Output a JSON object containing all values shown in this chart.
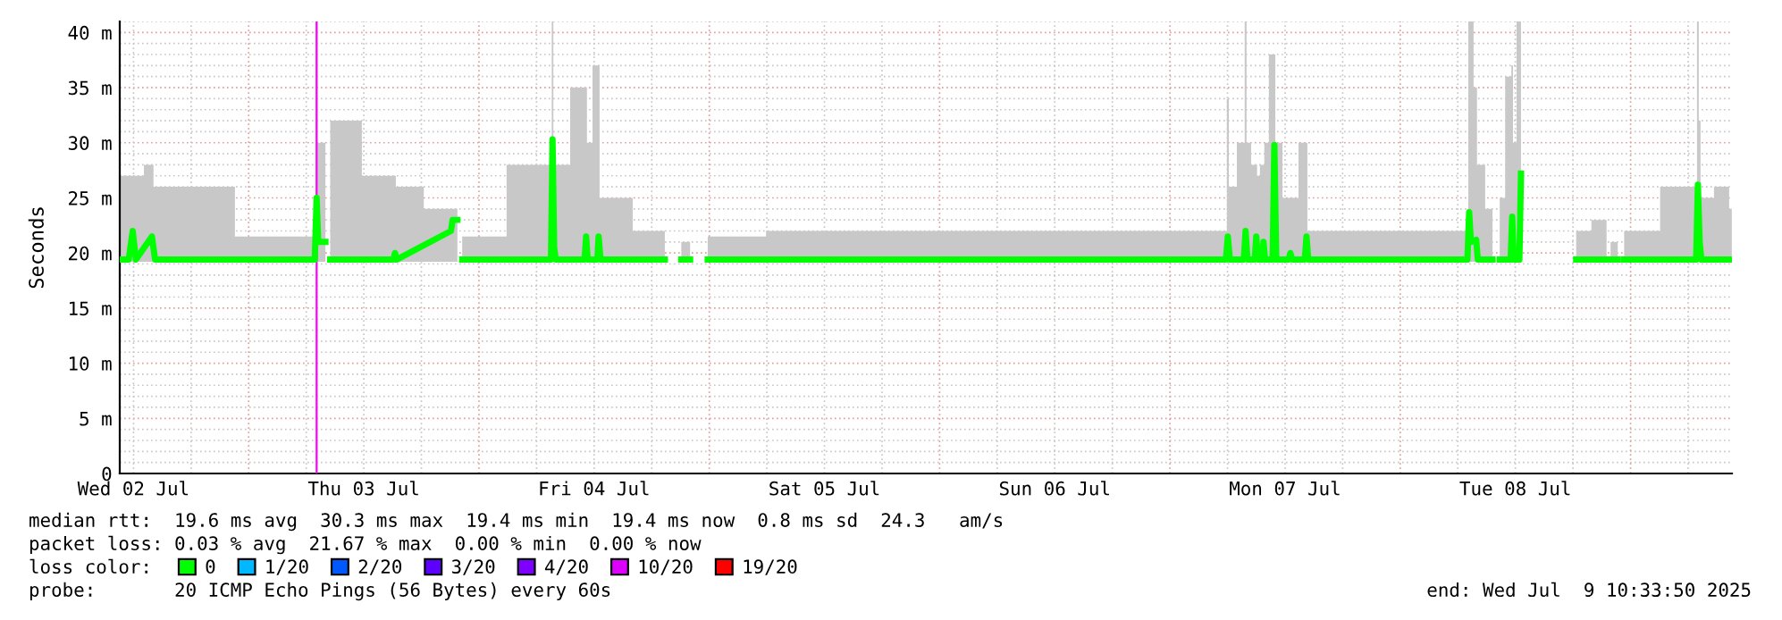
{
  "chart_data": {
    "type": "line",
    "ylabel": "Seconds",
    "legend_title": "loss color:",
    "legend": "bottom",
    "grid": true,
    "xlim": [
      "2025-07-02T10:34",
      "2025-07-09T10:34"
    ],
    "xticks": [
      {
        "value": "2025-07-02T12:00",
        "label": "Wed 02 Jul"
      },
      {
        "value": "2025-07-03T12:00",
        "label": "Thu 03 Jul"
      },
      {
        "value": "2025-07-04T12:00",
        "label": "Fri 04 Jul"
      },
      {
        "value": "2025-07-05T12:00",
        "label": "Sat 05 Jul"
      },
      {
        "value": "2025-07-06T12:00",
        "label": "Sun 06 Jul"
      },
      {
        "value": "2025-07-07T12:00",
        "label": "Mon 07 Jul"
      },
      {
        "value": "2025-07-08T12:00",
        "label": "Tue 08 Jul"
      }
    ],
    "ylim": [
      0,
      41
    ],
    "yticks": [
      {
        "value": 0,
        "label": "0"
      },
      {
        "value": 5,
        "label": "5 m"
      },
      {
        "value": 10,
        "label": "10 m"
      },
      {
        "value": 15,
        "label": "15 m"
      },
      {
        "value": 20,
        "label": "20 m"
      },
      {
        "value": 25,
        "label": "25 m"
      },
      {
        "value": 30,
        "label": "30 m"
      },
      {
        "value": 35,
        "label": "35 m"
      },
      {
        "value": 40,
        "label": "40 m"
      }
    ],
    "ref_lines": [
      {
        "axis": "x",
        "value": "2025-07-03T07:05",
        "color": "#ff00ff"
      }
    ],
    "x": [
      "2025-07-02T10:35",
      "2025-07-02T11:30",
      "2025-07-02T11:55",
      "2025-07-02T12:15",
      "2025-07-02T13:55",
      "2025-07-02T14:15",
      "2025-07-03T06:53",
      "2025-07-03T07:05",
      "2025-07-03T07:15",
      "2025-07-03T08:00",
      "2025-07-03T08:10",
      "2025-07-03T08:30",
      "2025-07-03T15:05",
      "2025-07-03T15:15",
      "2025-07-03T15:25",
      "2025-07-03T21:05",
      "2025-07-03T21:15",
      "2025-07-03T21:45",
      "2025-07-03T21:55",
      "2025-07-03T22:15",
      "2025-07-04T07:30",
      "2025-07-04T07:40",
      "2025-07-04T07:50",
      "2025-07-04T08:00",
      "2025-07-04T11:00",
      "2025-07-04T11:10",
      "2025-07-04T11:20",
      "2025-07-04T12:20",
      "2025-07-04T12:28",
      "2025-07-04T12:40",
      "2025-07-04T19:22",
      "2025-07-04T19:35",
      "2025-07-04T21:05",
      "2025-07-04T22:00",
      "2025-07-04T22:10",
      "2025-07-04T23:50",
      "2025-07-05T12:00",
      "2025-07-06T12:00",
      "2025-07-07T05:50",
      "2025-07-07T06:02",
      "2025-07-07T06:15",
      "2025-07-07T07:42",
      "2025-07-07T07:53",
      "2025-07-07T08:05",
      "2025-07-07T08:50",
      "2025-07-07T09:00",
      "2025-07-07T09:10",
      "2025-07-07T09:35",
      "2025-07-07T09:45",
      "2025-07-07T09:55",
      "2025-07-07T10:42",
      "2025-07-07T10:53",
      "2025-07-07T11:05",
      "2025-07-07T12:22",
      "2025-07-07T12:33",
      "2025-07-07T12:45",
      "2025-07-07T14:03",
      "2025-07-07T14:14",
      "2025-07-07T14:25",
      "2025-07-08T07:00",
      "2025-07-08T07:11",
      "2025-07-08T07:22",
      "2025-07-08T07:55",
      "2025-07-08T08:05",
      "2025-07-08T09:37",
      "2025-07-08T09:48",
      "2025-07-08T10:22",
      "2025-07-08T11:30",
      "2025-07-08T11:40",
      "2025-07-08T11:50",
      "2025-07-08T12:25",
      "2025-07-08T12:35",
      "2025-07-08T12:45",
      "2025-07-08T18:20",
      "2025-07-08T21:30",
      "2025-07-08T21:40",
      "2025-07-08T21:55",
      "2025-07-08T22:40",
      "2025-07-08T22:50",
      "2025-07-08T23:20",
      "2025-07-09T06:50",
      "2025-07-09T07:01",
      "2025-07-09T07:12",
      "2025-07-09T07:23",
      "2025-07-09T10:00",
      "2025-07-09T10:33"
    ],
    "series": [
      {
        "name": "0",
        "color": "#00ff00",
        "values": [
          19.4,
          19.4,
          22,
          19.4,
          21.5,
          19.4,
          19.4,
          25,
          21,
          21,
          null,
          19.4,
          19.4,
          20,
          19.4,
          22,
          23,
          23,
          null,
          19.4,
          19.4,
          30.3,
          20.5,
          19.4,
          19.4,
          21.5,
          19.4,
          19.4,
          21.5,
          19.4,
          19.4,
          null,
          19.4,
          19.4,
          null,
          19.4,
          19.4,
          19.4,
          19.4,
          21.5,
          19.4,
          19.4,
          22,
          19.4,
          19.4,
          21.5,
          19.4,
          19.4,
          21,
          19.4,
          19.4,
          29.8,
          19.4,
          19.4,
          20,
          19.4,
          19.4,
          21.5,
          19.4,
          19.4,
          23.7,
          21,
          21.2,
          19.4,
          19.4,
          null,
          19.4,
          19.4,
          23.3,
          19.4,
          19.4,
          27.2,
          null,
          19.4,
          19.4,
          null,
          19.4,
          19.4,
          null,
          19.4,
          19.4,
          26.2,
          21,
          19.4,
          19.4,
          19.4
        ],
        "lower": [
          19.2,
          19.2,
          19.2,
          19.2,
          19.2,
          19.2,
          19.2,
          19.2,
          19.2,
          19.2,
          null,
          19.2,
          19.2,
          19.2,
          19.2,
          19.2,
          19.2,
          19.2,
          null,
          19.2,
          19.2,
          19.2,
          19.2,
          19.2,
          19.2,
          19.2,
          19.2,
          19.2,
          19.2,
          19.2,
          19.2,
          null,
          19.2,
          19.2,
          null,
          19.2,
          19.2,
          19.2,
          19.2,
          19.2,
          19.2,
          19.2,
          19.2,
          19.2,
          19.2,
          19.2,
          19.2,
          19.2,
          19.2,
          19.2,
          19.2,
          19.2,
          19.2,
          19.2,
          19.2,
          19.2,
          19.2,
          19.2,
          19.2,
          19.2,
          19.2,
          19.2,
          19.2,
          19.2,
          19.2,
          null,
          19.2,
          19.2,
          19.2,
          19.2,
          19.2,
          19.2,
          null,
          19.2,
          19.2,
          null,
          19.2,
          19.2,
          null,
          19.2,
          19.2,
          19.2,
          19.2,
          19.2,
          19.2,
          19.2
        ],
        "upper": [
          27,
          27,
          27,
          27,
          28,
          26,
          21.5,
          41,
          30,
          30,
          null,
          32,
          27,
          27,
          26,
          24,
          24,
          24,
          null,
          21.5,
          28,
          41,
          30,
          28,
          35,
          35,
          30,
          37,
          37,
          25,
          22,
          null,
          21,
          21,
          null,
          21.5,
          22,
          22,
          22,
          34,
          26,
          30,
          41,
          30,
          28,
          28,
          27,
          28,
          28,
          30,
          38,
          38,
          30,
          25,
          25,
          25,
          30,
          30,
          22,
          22,
          41,
          41,
          35,
          28,
          24,
          null,
          25,
          36,
          37,
          30,
          41,
          41,
          null,
          22,
          23,
          null,
          21,
          21,
          null,
          22,
          26,
          41,
          32,
          25,
          26,
          24
        ]
      },
      {
        "name": "1/20",
        "color": "#00b8ff",
        "values": [
          null,
          null,
          null,
          null,
          null,
          null,
          null,
          null,
          null,
          null,
          null,
          null,
          null,
          null,
          null,
          null,
          null,
          null,
          null,
          null,
          null,
          null,
          null,
          null,
          null,
          null,
          null,
          null,
          null,
          null,
          null,
          null,
          null,
          null,
          null,
          null,
          null,
          null,
          null,
          null,
          null,
          null,
          null,
          null,
          null,
          null,
          null,
          null,
          null,
          null,
          null,
          null,
          null,
          null,
          null,
          null,
          null,
          null,
          null,
          null,
          null,
          null,
          null,
          null,
          null,
          null,
          null,
          null,
          null,
          null,
          null,
          null,
          null,
          null,
          null,
          null,
          null,
          null,
          null,
          null,
          null,
          null,
          null,
          null,
          null,
          null
        ]
      },
      {
        "name": "2/20",
        "color": "#0059ff",
        "values": [
          null,
          null,
          null,
          null,
          null,
          null,
          null,
          null,
          null,
          null,
          null,
          null,
          null,
          null,
          null,
          null,
          null,
          null,
          null,
          null,
          null,
          null,
          null,
          null,
          null,
          null,
          null,
          null,
          null,
          null,
          null,
          null,
          null,
          null,
          null,
          null,
          null,
          null,
          null,
          null,
          null,
          null,
          null,
          null,
          null,
          null,
          null,
          null,
          null,
          null,
          null,
          null,
          null,
          null,
          null,
          null,
          null,
          null,
          null,
          null,
          null,
          null,
          null,
          null,
          null,
          null,
          null,
          null,
          null,
          null,
          null,
          null,
          null,
          null,
          null,
          null,
          null,
          null,
          null,
          null,
          null,
          null,
          null,
          null,
          null,
          null
        ]
      },
      {
        "name": "3/20",
        "color": "#5e00ff",
        "values": [
          null,
          null,
          null,
          null,
          null,
          null,
          null,
          null,
          null,
          null,
          null,
          null,
          null,
          null,
          null,
          null,
          null,
          null,
          null,
          null,
          null,
          null,
          null,
          null,
          null,
          null,
          null,
          null,
          null,
          null,
          null,
          null,
          null,
          null,
          null,
          null,
          null,
          null,
          null,
          null,
          null,
          null,
          null,
          null,
          null,
          null,
          null,
          null,
          null,
          null,
          null,
          null,
          null,
          null,
          null,
          null,
          null,
          null,
          null,
          null,
          null,
          null,
          null,
          null,
          null,
          null,
          null,
          null,
          null,
          null,
          null,
          null,
          null,
          null,
          null,
          null,
          null,
          null,
          null,
          null,
          null,
          null,
          null,
          null,
          null,
          null
        ]
      },
      {
        "name": "4/20",
        "color": "#7e00ff",
        "values": [
          null,
          null,
          null,
          null,
          null,
          null,
          null,
          null,
          null,
          null,
          null,
          null,
          null,
          null,
          null,
          null,
          null,
          null,
          null,
          null,
          null,
          null,
          null,
          null,
          null,
          null,
          null,
          null,
          null,
          null,
          null,
          null,
          null,
          null,
          null,
          null,
          null,
          null,
          null,
          null,
          null,
          null,
          null,
          null,
          null,
          null,
          null,
          null,
          null,
          null,
          null,
          null,
          null,
          null,
          null,
          null,
          null,
          null,
          null,
          null,
          null,
          null,
          null,
          null,
          null,
          null,
          null,
          null,
          null,
          null,
          null,
          null,
          null,
          null,
          null,
          null,
          null,
          null,
          null,
          null,
          null,
          null,
          null,
          null,
          null,
          null
        ]
      },
      {
        "name": "10/20",
        "color": "#dd00ff",
        "values": [
          null,
          null,
          null,
          null,
          null,
          null,
          null,
          null,
          null,
          null,
          null,
          null,
          null,
          null,
          null,
          null,
          null,
          null,
          null,
          null,
          null,
          null,
          null,
          null,
          null,
          null,
          null,
          null,
          null,
          null,
          null,
          null,
          null,
          null,
          null,
          null,
          null,
          null,
          null,
          null,
          null,
          null,
          null,
          null,
          null,
          null,
          null,
          null,
          null,
          null,
          null,
          null,
          null,
          null,
          null,
          null,
          null,
          null,
          null,
          null,
          null,
          null,
          null,
          null,
          null,
          null,
          null,
          null,
          null,
          null,
          null,
          null,
          null,
          null,
          null,
          null,
          null,
          null,
          null,
          null,
          null,
          null,
          null,
          null,
          null,
          null
        ]
      },
      {
        "name": "19/20",
        "color": "#ff0000",
        "values": [
          null,
          null,
          null,
          null,
          null,
          null,
          null,
          null,
          null,
          null,
          null,
          null,
          null,
          null,
          null,
          null,
          null,
          null,
          null,
          null,
          null,
          null,
          null,
          null,
          null,
          null,
          null,
          null,
          null,
          null,
          null,
          null,
          null,
          null,
          null,
          null,
          null,
          null,
          null,
          null,
          null,
          null,
          null,
          null,
          null,
          null,
          null,
          null,
          null,
          null,
          null,
          null,
          null,
          null,
          null,
          null,
          null,
          null,
          null,
          null,
          null,
          null,
          null,
          null,
          null,
          null,
          null,
          null,
          null,
          null,
          null,
          null,
          null,
          null,
          null,
          null,
          null,
          null,
          null,
          null,
          null,
          null,
          null,
          null,
          null,
          null
        ]
      }
    ],
    "annotations": [
      "median rtt:  19.6 ms avg  30.3 ms max  19.4 ms min  19.4 ms now  0.8 ms sd  24.3   am/s",
      "packet loss: 0.03 % avg  21.67 % max  0.00 % min  0.00 % now",
      "probe:       20 ICMP Echo Pings (56 Bytes) every 60s",
      "end: Wed Jul  9 10:33:50 2025"
    ]
  }
}
